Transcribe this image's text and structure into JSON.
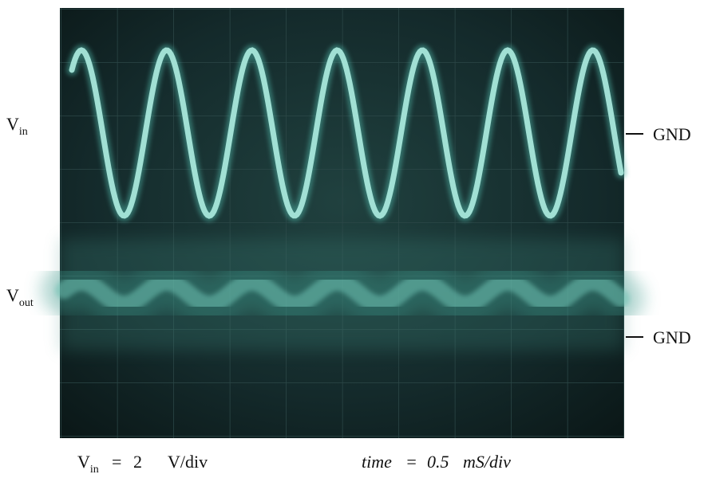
{
  "left_labels": [
    {
      "symbol": "V",
      "subscript": "in"
    },
    {
      "symbol": "V",
      "subscript": "out"
    }
  ],
  "right_labels": [
    "GND",
    "GND"
  ],
  "footer": {
    "vertical_scale": {
      "symbol": "V",
      "subscript": "in",
      "equals": "=",
      "value": 2,
      "unit": "V/div"
    },
    "time_scale": {
      "label": "time",
      "equals": "=",
      "value": 0.5,
      "unit": "mS/div"
    }
  }
}
